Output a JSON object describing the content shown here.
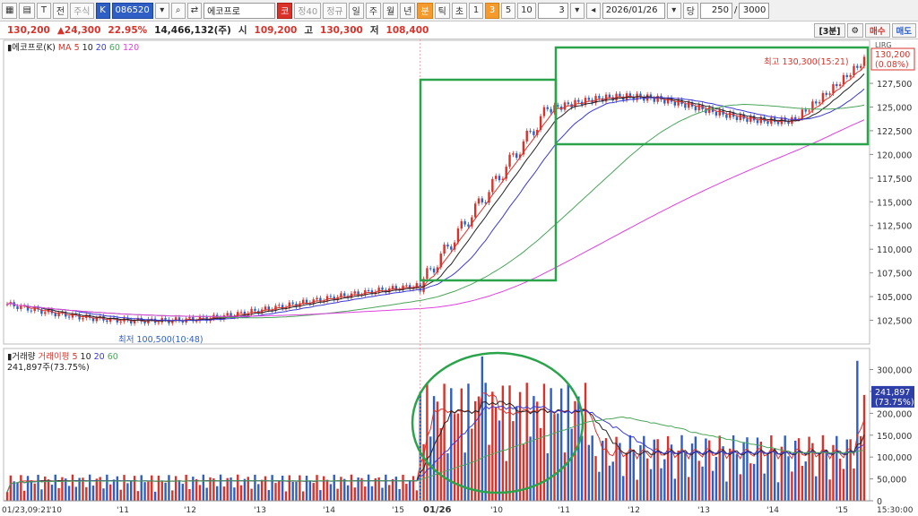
{
  "toolbar": {
    "items": [
      "주식"
    ],
    "code": "086520",
    "stock_name": "에코프로",
    "badge1": "코",
    "badge2": "정40",
    "period_label": "정규",
    "periods": [
      "일",
      "주",
      "월",
      "년",
      "분",
      "틱",
      "초"
    ],
    "num1": "1",
    "num3": "3",
    "num5": "5",
    "num10": "10",
    "interval": "3",
    "date": "2026/01/26",
    "day_label": "당",
    "count": "250",
    "slash": "/",
    "total": "3000"
  },
  "quote": {
    "price": "130,200",
    "change": "▲24,300",
    "change_pct": "22.95%",
    "volume": "14,466,132(주)",
    "open_label": "시",
    "open": "109,200",
    "high_label": "고",
    "high": "130,300",
    "low_label": "저",
    "low": "108,400",
    "period_btn": "[3분]",
    "buy": "매수",
    "sell": "매도"
  },
  "price_panel": {
    "legend_name": "에코프로(K)",
    "ma_label": "MA",
    "ma_periods": [
      "5",
      "10",
      "20",
      "60",
      "120"
    ],
    "high_note": "최고 130,300(15:21)",
    "low_note": "최저 100,500(10:48)",
    "last_price": "130,200",
    "last_pct": "(0.08%)",
    "axis_tag": "LIRG",
    "y_ticks": [
      "127,500",
      "125,000",
      "122,500",
      "120,000",
      "117,500",
      "115,000",
      "112,500",
      "110,000",
      "107,500",
      "105,000",
      "102,500"
    ]
  },
  "volume_panel": {
    "legend_name": "거래량",
    "legend_ma": "거래이평",
    "ma_periods": [
      "5",
      "10",
      "20",
      "60"
    ],
    "current": "241,897주(73.75%)",
    "last_vol": "241,897",
    "last_pct": "(73.75%)",
    "y_ticks": [
      "300,000",
      "250,000",
      "200,000",
      "150,000",
      "100,000",
      "50,000",
      "0"
    ]
  },
  "x_axis": {
    "labels": [
      "01/23,09:21",
      "'10",
      "'11",
      "'12",
      "'13",
      "'14",
      "'15",
      "01/26",
      "'10",
      "'11",
      "'12",
      "'13",
      "'14",
      "'15"
    ],
    "time": "15:30:00"
  },
  "colors": {
    "up": "#d9322a",
    "down": "#2f5fc4",
    "ma5": "#d9322a",
    "ma10": "#222222",
    "ma20": "#3a3ad8",
    "ma60": "#4aa55a",
    "ma120": "#e040e0",
    "highlight": "#2aa34a"
  }
}
